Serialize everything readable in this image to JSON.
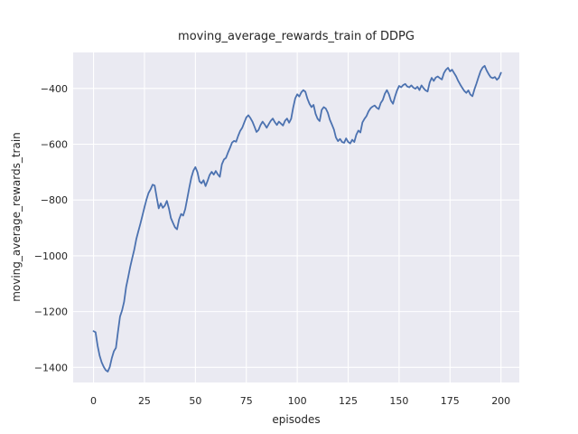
{
  "figure": {
    "title": "moving_average_rewards_train of DDPG",
    "xlabel": "episodes",
    "ylabel": "moving_average_rewards_train"
  },
  "chart_data": {
    "type": "line",
    "title": "moving_average_rewards_train of DDPG",
    "xlabel": "episodes",
    "ylabel": "moving_average_rewards_train",
    "style": "seaborn-darkgrid",
    "grid": true,
    "legend": "none",
    "x_ticks": [
      0,
      25,
      50,
      75,
      100,
      125,
      150,
      175,
      200
    ],
    "x_tick_labels": [
      "0",
      "25",
      "50",
      "75",
      "100",
      "125",
      "150",
      "175",
      "200"
    ],
    "y_ticks": [
      -400,
      -600,
      -800,
      -1000,
      -1200,
      -1400
    ],
    "y_tick_labels": [
      "−400",
      "−600",
      "−800",
      "−1000",
      "−1200",
      "−1400"
    ],
    "xlim": [
      -10,
      209
    ],
    "ylim": [
      -1454,
      -271
    ],
    "colors": {
      "line": "#4c72b0",
      "plot_background": "#eaeaf2",
      "grid": "#ffffff",
      "text": "#262626",
      "figure_background": "#ffffff"
    },
    "x": {
      "start": 0,
      "step": 1
    },
    "series": [
      {
        "name": "moving_average_rewards_train",
        "values": [
          -1270,
          -1274,
          -1322,
          -1358,
          -1382,
          -1398,
          -1410,
          -1415,
          -1398,
          -1366,
          -1342,
          -1330,
          -1272,
          -1218,
          -1196,
          -1165,
          -1112,
          -1077,
          -1040,
          -1008,
          -978,
          -940,
          -912,
          -885,
          -856,
          -826,
          -798,
          -775,
          -762,
          -745,
          -748,
          -790,
          -830,
          -812,
          -828,
          -820,
          -803,
          -830,
          -865,
          -882,
          -898,
          -905,
          -869,
          -850,
          -856,
          -833,
          -795,
          -756,
          -720,
          -695,
          -682,
          -700,
          -733,
          -740,
          -729,
          -750,
          -731,
          -710,
          -699,
          -709,
          -696,
          -708,
          -717,
          -672,
          -655,
          -649,
          -630,
          -613,
          -594,
          -588,
          -591,
          -570,
          -552,
          -541,
          -522,
          -504,
          -496,
          -506,
          -519,
          -537,
          -556,
          -549,
          -531,
          -519,
          -529,
          -541,
          -528,
          -516,
          -508,
          -521,
          -531,
          -519,
          -526,
          -533,
          -516,
          -508,
          -523,
          -509,
          -469,
          -436,
          -421,
          -429,
          -414,
          -406,
          -412,
          -437,
          -455,
          -467,
          -459,
          -491,
          -509,
          -517,
          -477,
          -467,
          -472,
          -487,
          -512,
          -529,
          -547,
          -576,
          -589,
          -581,
          -592,
          -595,
          -579,
          -592,
          -597,
          -584,
          -592,
          -566,
          -551,
          -558,
          -522,
          -509,
          -499,
          -482,
          -471,
          -465,
          -461,
          -469,
          -474,
          -452,
          -441,
          -419,
          -406,
          -421,
          -444,
          -455,
          -429,
          -407,
          -391,
          -396,
          -388,
          -384,
          -393,
          -396,
          -389,
          -397,
          -401,
          -394,
          -406,
          -389,
          -399,
          -407,
          -411,
          -379,
          -362,
          -373,
          -361,
          -357,
          -363,
          -368,
          -345,
          -333,
          -326,
          -339,
          -333,
          -345,
          -357,
          -373,
          -386,
          -398,
          -409,
          -416,
          -407,
          -422,
          -428,
          -403,
          -382,
          -359,
          -338,
          -325,
          -319,
          -336,
          -349,
          -360,
          -363,
          -359,
          -369,
          -362,
          -344
        ]
      }
    ]
  }
}
